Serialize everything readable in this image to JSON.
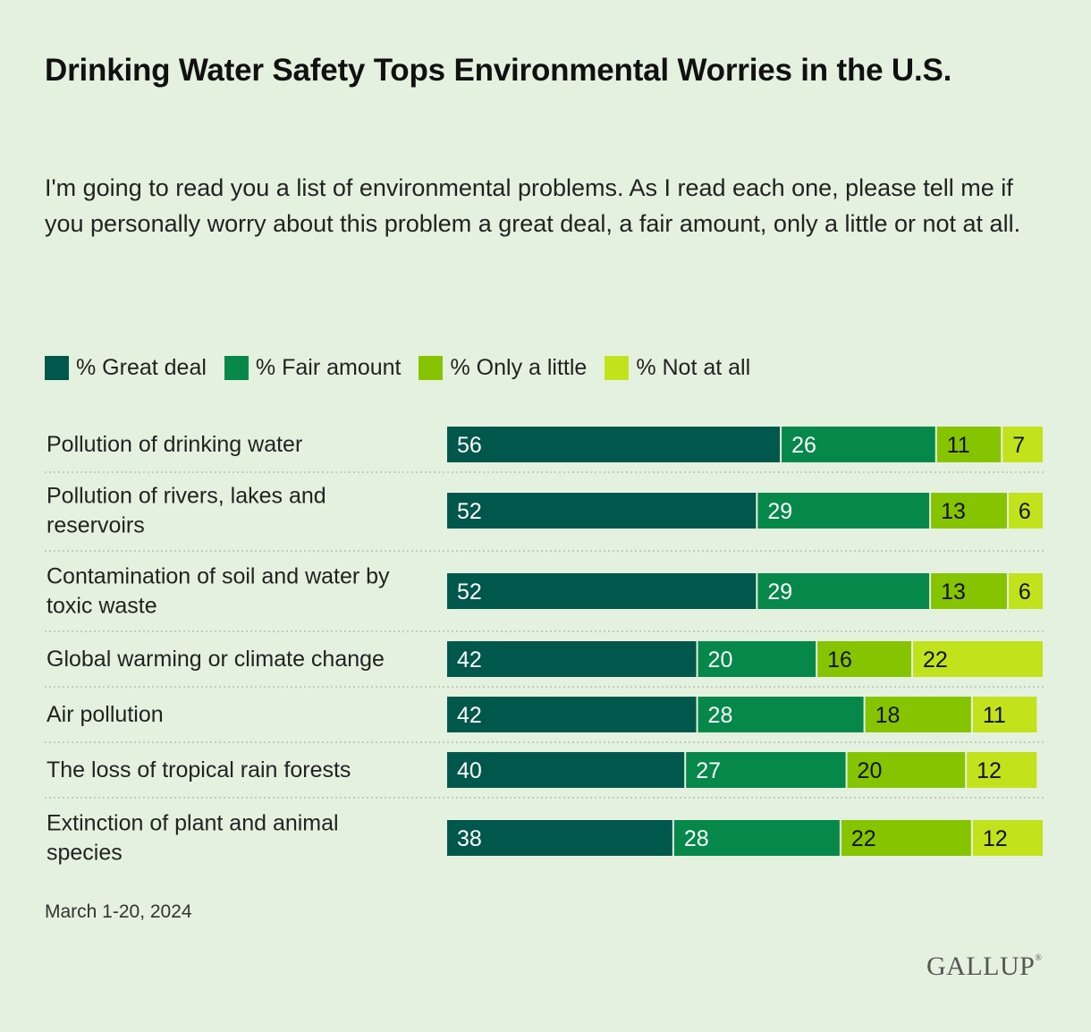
{
  "title": "Drinking Water Safety Tops Environmental Worries in the U.S.",
  "subtitle": "I'm going to read you a list of environmental problems. As I read each one, please tell me if you personally worry about this problem a great deal, a fair amount, only a little or not at all.",
  "legend": [
    {
      "label": "% Great deal",
      "color": "#00574b"
    },
    {
      "label": "% Fair amount",
      "color": "#05884a"
    },
    {
      "label": "% Only a little",
      "color": "#86c400"
    },
    {
      "label": "% Not at all",
      "color": "#c2e21c"
    }
  ],
  "chart_data": {
    "type": "bar",
    "orientation": "horizontal",
    "stacked": true,
    "title": "Drinking Water Safety Tops Environmental Worries in the U.S.",
    "categories": [
      [
        "Pollution of drinking water"
      ],
      [
        "Pollution of rivers, lakes and",
        "reservoirs"
      ],
      [
        "Contamination of soil and water by",
        "toxic waste"
      ],
      [
        "Global warming or climate change"
      ],
      [
        "Air pollution"
      ],
      [
        "The loss of tropical rain forests"
      ],
      [
        "Extinction of plant and animal",
        "species"
      ]
    ],
    "series": [
      {
        "name": "% Great deal",
        "values": [
          56,
          52,
          52,
          42,
          42,
          40,
          38
        ]
      },
      {
        "name": "% Fair amount",
        "values": [
          26,
          29,
          29,
          20,
          28,
          27,
          28
        ]
      },
      {
        "name": "% Only a little",
        "values": [
          11,
          13,
          13,
          16,
          18,
          20,
          22
        ]
      },
      {
        "name": "% Not at all",
        "values": [
          7,
          6,
          6,
          22,
          11,
          12,
          12
        ]
      }
    ],
    "xlim": [
      0,
      100
    ],
    "colors": [
      "#00574b",
      "#05884a",
      "#86c400",
      "#c2e21c"
    ],
    "label_colors": [
      "#ffffff",
      "#ffffff",
      "#111111",
      "#111111"
    ]
  },
  "footnote": "March 1-20, 2024",
  "logo": {
    "text": "GALLUP",
    "mark": "®"
  }
}
